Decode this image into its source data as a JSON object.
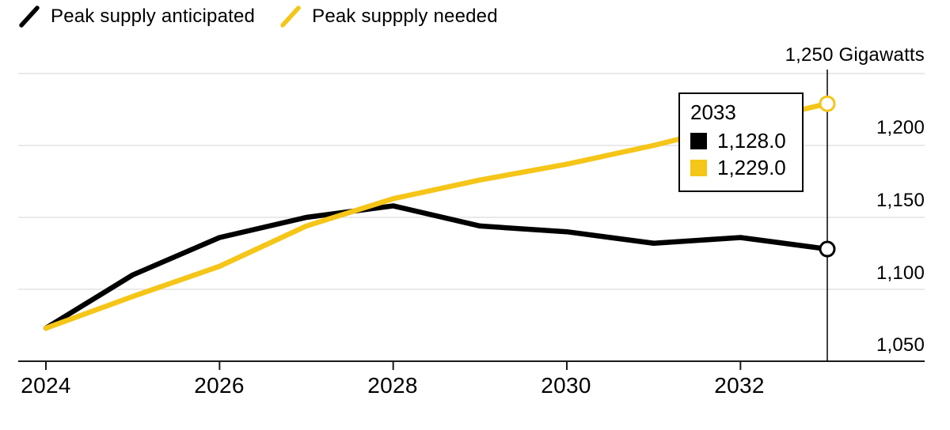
{
  "legend": {
    "series": [
      {
        "label": "Peak supply anticipated",
        "color": "#000000"
      },
      {
        "label": "Peak suppply needed",
        "color": "#F5C518"
      }
    ]
  },
  "tooltip": {
    "title": "2033",
    "rows": [
      {
        "series": "Peak supply anticipated",
        "color": "#000000",
        "value": "1,128.0"
      },
      {
        "series": "Peak suppply needed",
        "color": "#F5C518",
        "value": "1,229.0"
      }
    ]
  },
  "axes": {
    "y_unit": "Gigawatts",
    "y_top_label": "1,250 Gigawatts",
    "y_tick_labels": [
      "1,050",
      "1,100",
      "1,150",
      "1,200",
      "1,250 Gigawatts"
    ],
    "x_tick_labels": [
      "2024",
      "2026",
      "2028",
      "2030",
      "2032"
    ]
  },
  "chart_data": {
    "type": "line",
    "title": "",
    "xlabel": "",
    "ylabel": "Gigawatts",
    "x": [
      2024,
      2025,
      2026,
      2027,
      2028,
      2029,
      2030,
      2031,
      2032,
      2033
    ],
    "series": [
      {
        "id": "anticipated",
        "name": "Peak supply anticipated",
        "color": "#000000",
        "values": [
          1073,
          1110,
          1136,
          1150,
          1158,
          1144,
          1140,
          1132,
          1136,
          1128
        ]
      },
      {
        "id": "needed",
        "name": "Peak suppply needed",
        "color": "#F5C518",
        "values": [
          1073,
          1095,
          1116,
          1144,
          1163,
          1176,
          1187,
          1200,
          1215,
          1229
        ]
      }
    ],
    "ylim": [
      1050,
      1250
    ],
    "y_ticks": [
      1050,
      1100,
      1150,
      1200,
      1250
    ],
    "x_ticks": [
      2024,
      2026,
      2028,
      2030,
      2032
    ],
    "crosshair_x": 2033,
    "highlighted_values": {
      "x": 2033,
      "anticipated": 1128.0,
      "needed": 1229.0
    },
    "grid": true,
    "grid_color": "#E2E2E2",
    "axis_color": "#1A1A1A",
    "legend_position": "top-left",
    "marker": "open-circle-at-last-point"
  }
}
